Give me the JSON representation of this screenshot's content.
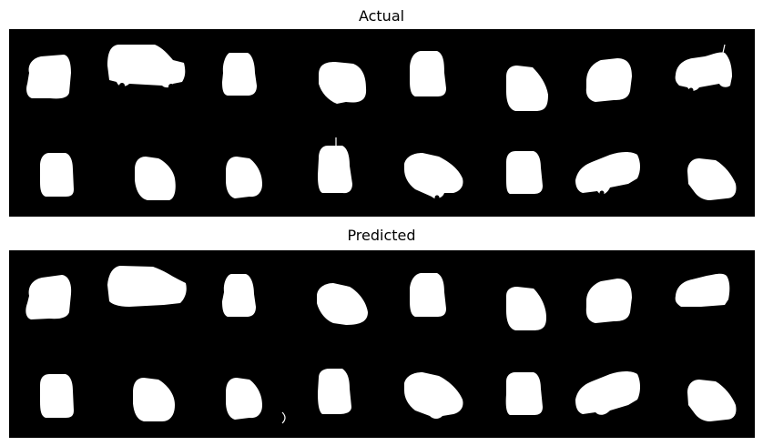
{
  "figure": {
    "panels": [
      {
        "id": "actual",
        "title": "Actual"
      },
      {
        "id": "predicted",
        "title": "Predicted"
      }
    ],
    "colors": {
      "mask": "#ffffff",
      "background": "#000000",
      "page": "#ffffff"
    }
  }
}
